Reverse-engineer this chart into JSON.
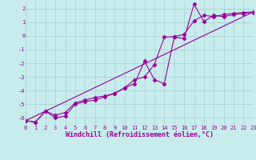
{
  "xlabel": "Windchill (Refroidissement éolien,°C)",
  "bg_color": "#c8ecec",
  "grid_color": "#aad4d4",
  "line_color": "#990099",
  "xlim": [
    0,
    23
  ],
  "ylim": [
    -6.5,
    2.5
  ],
  "yticks": [
    -6,
    -5,
    -4,
    -3,
    -2,
    -1,
    0,
    1,
    2
  ],
  "xticks": [
    0,
    1,
    2,
    3,
    4,
    5,
    6,
    7,
    8,
    9,
    10,
    11,
    12,
    13,
    14,
    15,
    16,
    17,
    18,
    19,
    20,
    21,
    22,
    23
  ],
  "series1_x": [
    0,
    1,
    2,
    3,
    4,
    5,
    6,
    7,
    8,
    9,
    10,
    11,
    12,
    13,
    14,
    15,
    16,
    17,
    18,
    19,
    20,
    21,
    22,
    23
  ],
  "series1_y": [
    -6.2,
    -6.3,
    -5.5,
    -6.0,
    -5.85,
    -5.0,
    -4.8,
    -4.7,
    -4.45,
    -4.2,
    -3.8,
    -3.5,
    -1.85,
    -3.2,
    -3.5,
    -0.1,
    -0.2,
    2.3,
    1.05,
    1.5,
    1.4,
    1.55,
    1.65,
    1.7
  ],
  "series2_x": [
    0,
    1,
    2,
    3,
    4,
    5,
    6,
    7,
    8,
    9,
    10,
    11,
    12,
    13,
    14,
    15,
    16,
    17,
    18,
    19,
    20,
    21,
    22,
    23
  ],
  "series2_y": [
    -6.2,
    -6.3,
    -5.5,
    -5.8,
    -5.6,
    -4.9,
    -4.7,
    -4.5,
    -4.4,
    -4.2,
    -3.8,
    -3.2,
    -3.0,
    -2.1,
    -0.1,
    -0.05,
    0.1,
    1.1,
    1.5,
    1.4,
    1.55,
    1.65,
    1.7,
    1.75
  ],
  "series3_x": [
    0,
    23
  ],
  "series3_y": [
    -6.2,
    1.75
  ],
  "tick_fontsize": 5,
  "xlabel_fontsize": 6,
  "lw": 0.8,
  "marker_size": 2.5
}
